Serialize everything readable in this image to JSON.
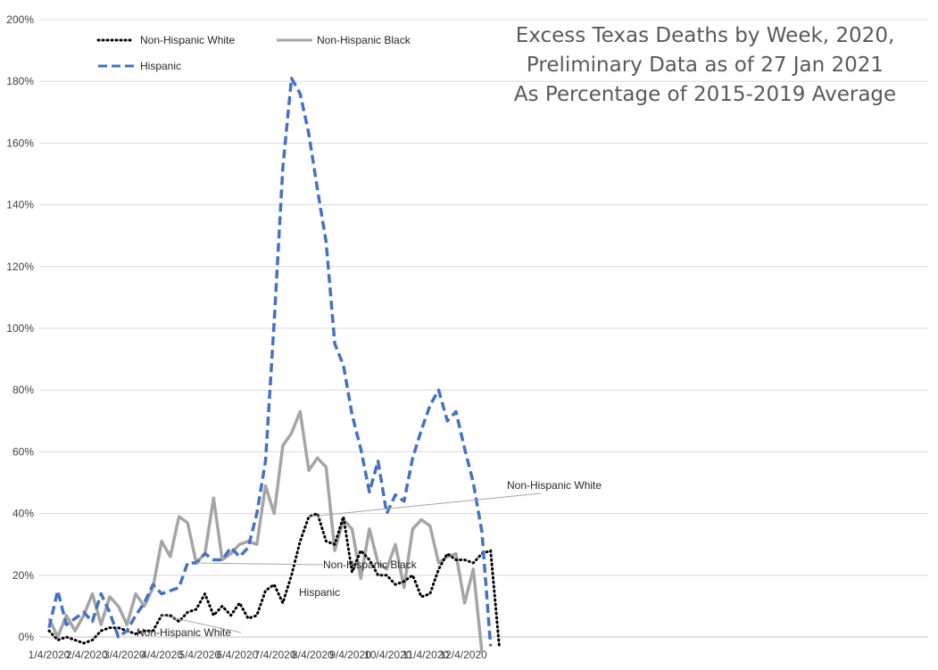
{
  "chart_data": {
    "type": "line",
    "title_lines": [
      "Excess Texas Deaths by Week, 2020,",
      "Preliminary Data as of 27 Jan 2021",
      "As Percentage of 2015-2019 Average"
    ],
    "xlabel": "",
    "ylabel": "",
    "ylim": [
      0,
      200
    ],
    "y_ticks": [
      0,
      20,
      40,
      60,
      80,
      100,
      120,
      140,
      160,
      180,
      200
    ],
    "y_tick_labels": [
      "0%",
      "20%",
      "40%",
      "60%",
      "80%",
      "100%",
      "120%",
      "140%",
      "160%",
      "180%",
      "200%"
    ],
    "x_tick_labels": [
      "1/4/2020",
      "2/4/2020",
      "3/4/2020",
      "4/4/2020",
      "5/4/2020",
      "6/4/2020",
      "7/4/2020",
      "8/4/2020",
      "9/4/2020",
      "10/4/2020",
      "11/4/2020",
      "12/4/2020"
    ],
    "grid": true,
    "legend_position": "top-left",
    "x_unit": "week",
    "series": [
      {
        "name": "Non-Hispanic White",
        "color": "#000000",
        "style": "dotted",
        "values": [
          2,
          -1,
          0,
          -1,
          -2,
          -1,
          2,
          3,
          3,
          2,
          1,
          2,
          2,
          7,
          7,
          5,
          8,
          9,
          14,
          7,
          10,
          7,
          11,
          6,
          7,
          15,
          17,
          11,
          20,
          31,
          39,
          40,
          31,
          30,
          39,
          21,
          28,
          25,
          20,
          20,
          17,
          18,
          20,
          13,
          14,
          22,
          27,
          25,
          25,
          24,
          27,
          28,
          -3
        ]
      },
      {
        "name": "Non-Hispanic Black",
        "color": "#a5a5a5",
        "style": "solid",
        "values": [
          6,
          0,
          7,
          2,
          7,
          14,
          4,
          13,
          10,
          4,
          14,
          10,
          16,
          31,
          26,
          39,
          37,
          24,
          27,
          45,
          25,
          27,
          30,
          31,
          30,
          49,
          40,
          62,
          66,
          73,
          54,
          58,
          55,
          28,
          38,
          35,
          19,
          35,
          24,
          22,
          30,
          16,
          35,
          38,
          36,
          24,
          26,
          27,
          11,
          22,
          -5
        ]
      },
      {
        "name": "Hispanic",
        "color": "#4472c4",
        "style": "dashed",
        "values": [
          3,
          15,
          4,
          6,
          8,
          5,
          14,
          8,
          0,
          2,
          7,
          11,
          17,
          14,
          15,
          16,
          24,
          24,
          27,
          25,
          25,
          29,
          26,
          29,
          40,
          57,
          102,
          152,
          181,
          176,
          163,
          145,
          128,
          95,
          88,
          72,
          61,
          47,
          57,
          40,
          46,
          44,
          58,
          67,
          75,
          80,
          70,
          73,
          61,
          50,
          34,
          -3
        ]
      }
    ],
    "annotations": [
      {
        "text": "Non-Hispanic White",
        "series": "Non-Hispanic White",
        "point_index": 30
      },
      {
        "text": "Non-Hispanic Black",
        "series": "Hispanic",
        "point_index": 17
      },
      {
        "text": "Hispanic",
        "series": "Non-Hispanic White",
        "point_index": 18
      },
      {
        "text": "Non-Hispanic White",
        "series": "Non-Hispanic White",
        "point_index": 13
      }
    ]
  }
}
